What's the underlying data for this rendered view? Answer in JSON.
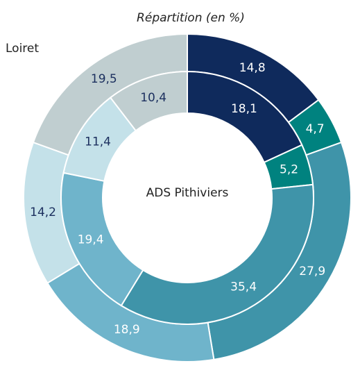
{
  "chart_data": {
    "type": "donut",
    "title": "Répartition (en %)",
    "colors": [
      "#0f2a5c",
      "#00827f",
      "#3f94a9",
      "#6fb4cb",
      "#c4e1e9",
      "#c0ced0"
    ],
    "label_colors": [
      "#ffffff",
      "#ffffff",
      "#ffffff",
      "#ffffff",
      "#1b2f5e",
      "#1b2f5e"
    ],
    "series": [
      {
        "name": "Loiret",
        "values": [
          14.8,
          4.7,
          27.9,
          18.9,
          14.2,
          19.5
        ],
        "value_labels": [
          "14,8",
          "4,7",
          "27,9",
          "18,9",
          "14,2",
          "19,5"
        ]
      },
      {
        "name": "ADS Pithiviers",
        "values": [
          18.1,
          5.2,
          35.4,
          19.4,
          11.4,
          10.4
        ],
        "value_labels": [
          "18,1",
          "5,2",
          "35,4",
          "19,4",
          "11,4",
          "10,4"
        ]
      }
    ]
  }
}
